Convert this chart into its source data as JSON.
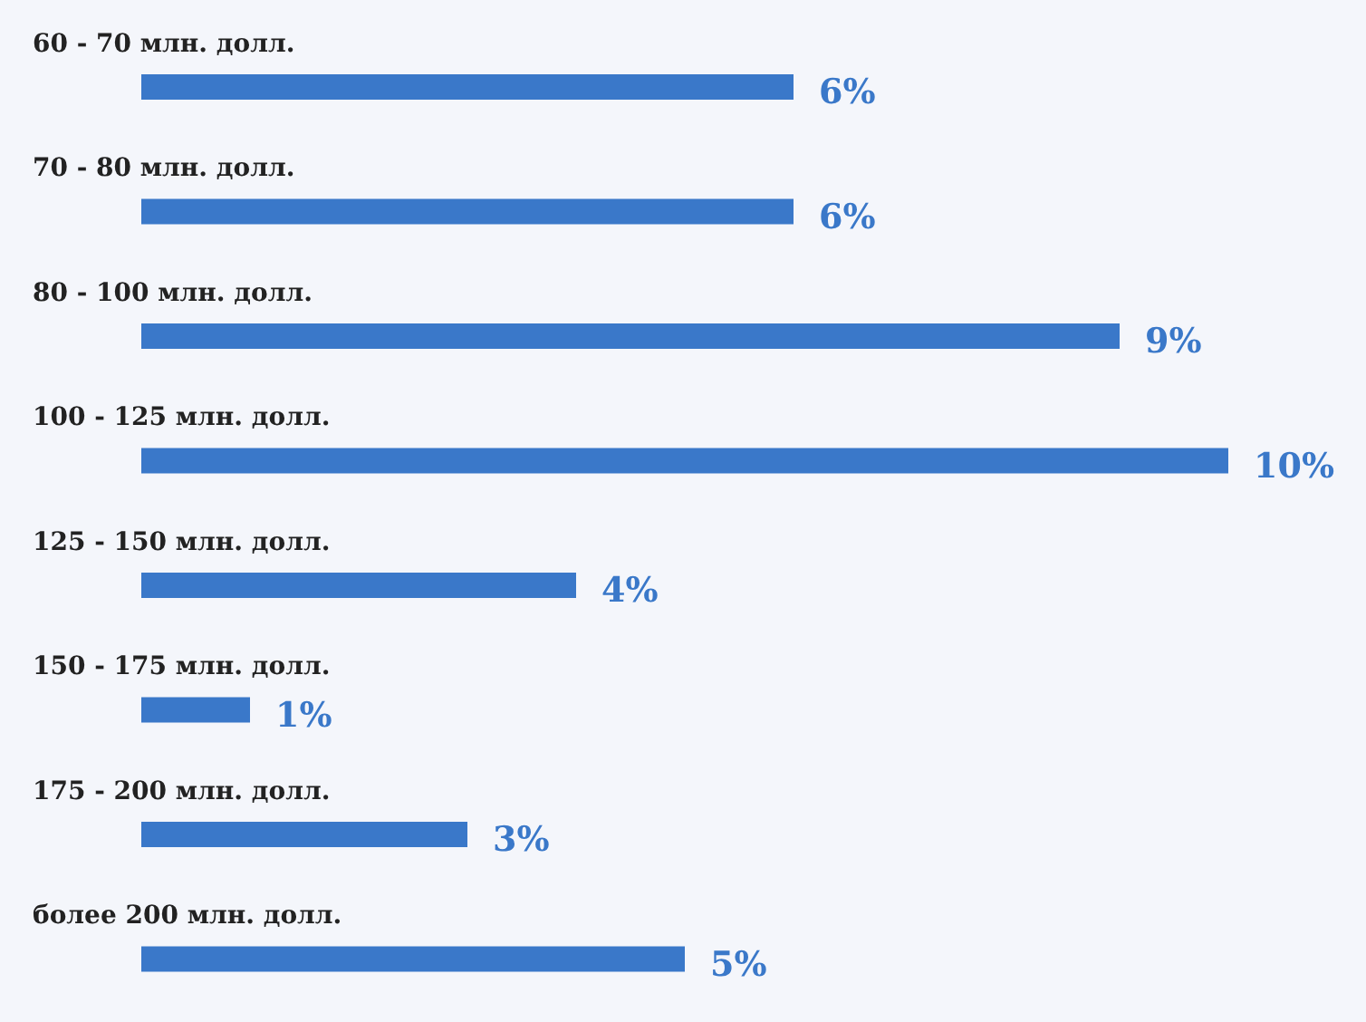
{
  "chart_data": {
    "type": "bar",
    "orientation": "horizontal",
    "categories": [
      "60 - 70 млн. долл.",
      "70 - 80 млн. долл.",
      "80 - 100 млн. долл.",
      "100 - 125 млн. долл.",
      "125 - 150 млн. долл.",
      "150 - 175 млн. долл.",
      "175 - 200 млн. долл.",
      "более 200 млн. долл."
    ],
    "values": [
      6,
      6,
      9,
      10,
      4,
      1,
      3,
      5
    ],
    "value_labels": [
      "6%",
      "6%",
      "9%",
      "10%",
      "4%",
      "1%",
      "3%",
      "5%"
    ],
    "color": "#3a78c9",
    "grid": false,
    "legend": false
  }
}
